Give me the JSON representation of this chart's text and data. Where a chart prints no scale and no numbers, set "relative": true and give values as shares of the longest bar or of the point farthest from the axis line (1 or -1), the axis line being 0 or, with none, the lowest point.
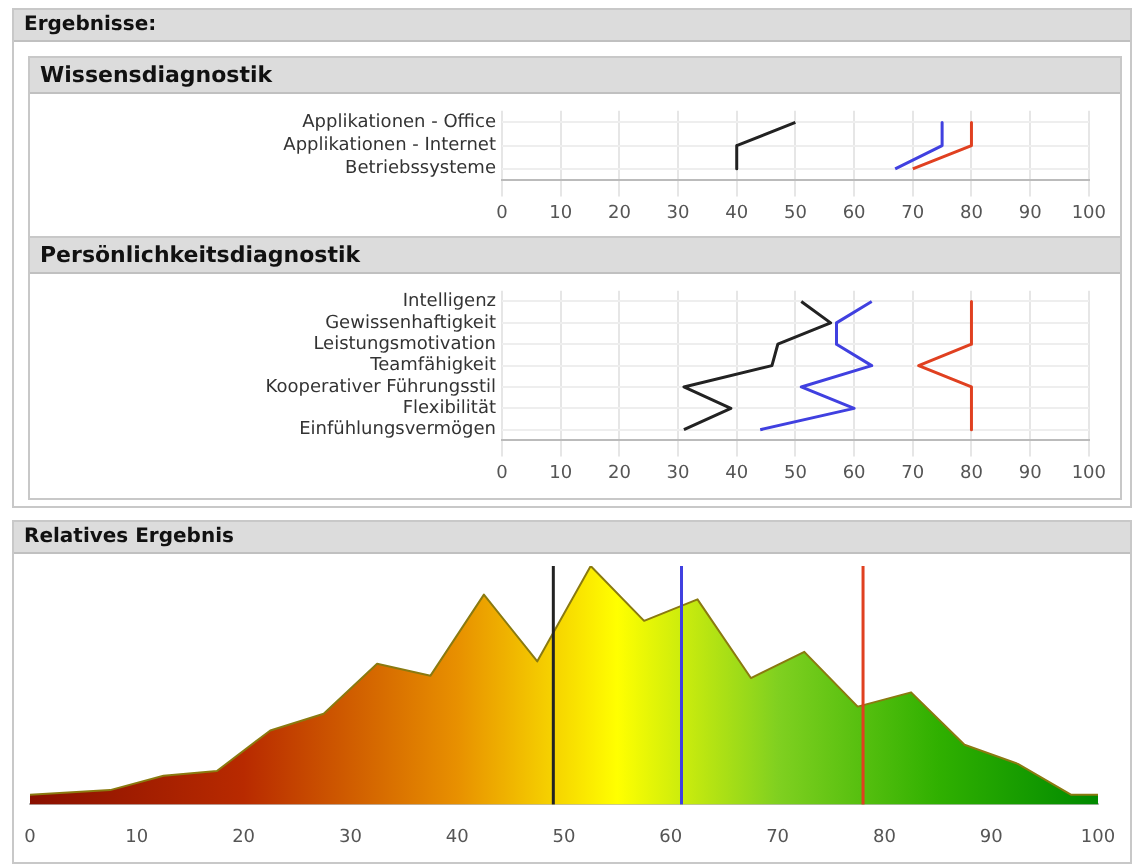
{
  "chart_data": [
    {
      "type": "line",
      "title": "Wissensdiagnostik",
      "annotations": [
        "Ergebnisse:"
      ],
      "orientation": "horizontal",
      "grid": true,
      "categories": [
        "Applikationen - Office",
        "Applikationen - Internet",
        "Betriebssysteme"
      ],
      "xlim": [
        0,
        100
      ],
      "xticks": [
        0,
        10,
        20,
        30,
        40,
        50,
        60,
        70,
        80,
        90,
        100
      ],
      "series": [
        {
          "color": "#222222",
          "values": [
            50,
            40,
            40
          ]
        },
        {
          "color": "#4040e0",
          "values": [
            75,
            75,
            67
          ]
        },
        {
          "color": "#e04020",
          "values": [
            80,
            80,
            70
          ]
        }
      ]
    },
    {
      "type": "line",
      "title": "Persönlichkeitsdiagnostik",
      "orientation": "horizontal",
      "grid": true,
      "categories": [
        "Intelligenz",
        "Gewissenhaftigkeit",
        "Leistungsmotivation",
        "Teamfähigkeit",
        "Kooperativer Führungsstil",
        "Flexibilität",
        "Einfühlungsvermögen"
      ],
      "xlim": [
        0,
        100
      ],
      "xticks": [
        0,
        10,
        20,
        30,
        40,
        50,
        60,
        70,
        80,
        90,
        100
      ],
      "series": [
        {
          "color": "#222222",
          "values": [
            51,
            56,
            47,
            46,
            31,
            39,
            31
          ]
        },
        {
          "color": "#4040e0",
          "values": [
            63,
            57,
            57,
            63,
            51,
            60,
            44
          ]
        },
        {
          "color": "#e04020",
          "values": [
            80,
            80,
            80,
            71,
            80,
            80,
            80
          ]
        }
      ]
    },
    {
      "type": "area",
      "title": "Relatives Ergebnis",
      "relative": true,
      "grid": false,
      "x": [
        0,
        7.5,
        12.5,
        17.5,
        22.5,
        27.5,
        32.5,
        37.5,
        42.5,
        47.5,
        52.5,
        57.5,
        62.5,
        67.5,
        72.5,
        77.5,
        82.5,
        87.5,
        92.5,
        97.5,
        100
      ],
      "xlim": [
        0,
        100
      ],
      "xticks": [
        0,
        10,
        20,
        30,
        40,
        50,
        60,
        70,
        80,
        90,
        100
      ],
      "series": [
        {
          "color": "#8a7a10",
          "values": [
            0.04,
            0.06,
            0.12,
            0.14,
            0.31,
            0.38,
            0.59,
            0.54,
            0.88,
            0.6,
            1,
            0.77,
            0.86,
            0.53,
            0.64,
            0.41,
            0.47,
            0.25,
            0.17,
            0.04,
            0.04
          ]
        }
      ],
      "ref_lines": [
        {
          "axis": "x",
          "value": 49,
          "color": "#222222"
        },
        {
          "axis": "x",
          "value": 61,
          "color": "#4040e0"
        },
        {
          "axis": "x",
          "value": 78,
          "color": "#e04020"
        }
      ]
    }
  ]
}
